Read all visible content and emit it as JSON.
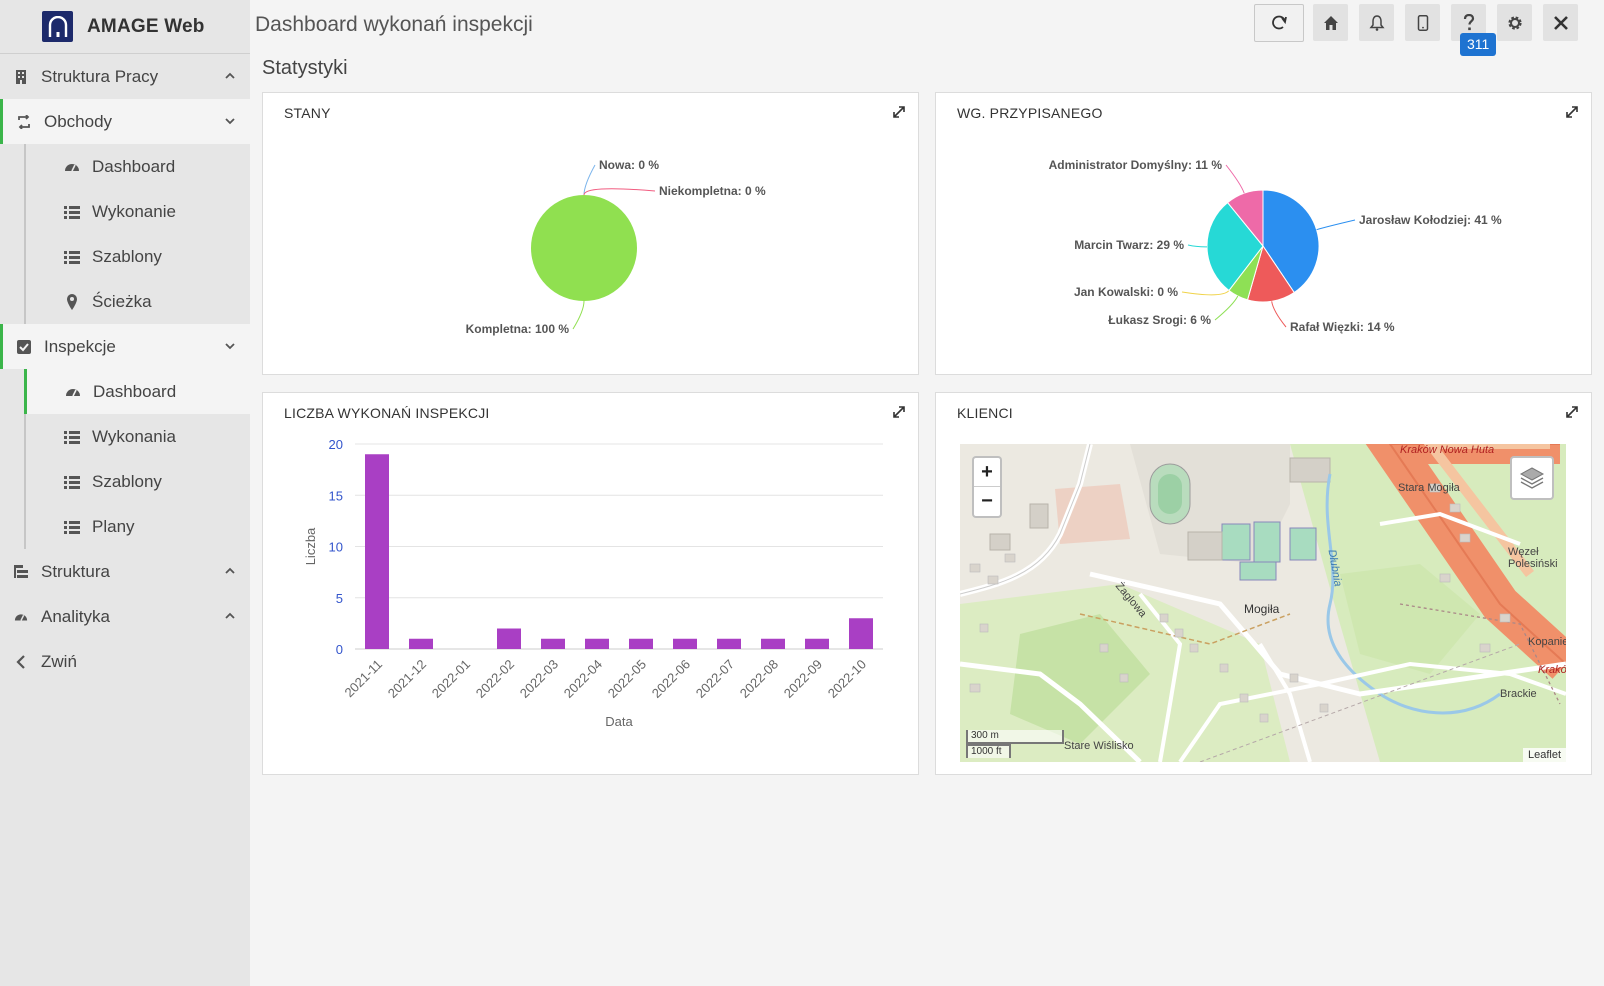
{
  "app": {
    "name": "AMAGE Web"
  },
  "topbar": {
    "title": "Dashboard wykonań inspekcji",
    "help_badge": "311"
  },
  "sidebar": {
    "items": [
      {
        "label": "Struktura Pracy"
      },
      {
        "label": "Obchody"
      },
      {
        "label": "Dashboard"
      },
      {
        "label": "Wykonanie"
      },
      {
        "label": "Szablony"
      },
      {
        "label": "Ścieżka"
      },
      {
        "label": "Inspekcje"
      },
      {
        "label": "Dashboard"
      },
      {
        "label": "Wykonania"
      },
      {
        "label": "Szablony"
      },
      {
        "label": "Plany"
      },
      {
        "label": "Struktura"
      },
      {
        "label": "Analityka"
      },
      {
        "label": "Zwiń"
      }
    ]
  },
  "main": {
    "section_title": "Statystyki",
    "cards": {
      "stany": "STANY",
      "assigned": "WG. PRZYPISANEGO",
      "count": "LICZBA WYKONAŃ INSPEKCJI",
      "clients": "KLIENCI"
    }
  },
  "chart_data": [
    {
      "type": "pie",
      "title": "STANY",
      "slices": [
        {
          "label": "Nowa: 0 %",
          "value": 0,
          "color": "#7cb5ec"
        },
        {
          "label": "Niekompletna: 0 %",
          "value": 0,
          "color": "#f15c80"
        },
        {
          "label": "Kompletna: 100 %",
          "value": 100,
          "color": "#90e050"
        }
      ]
    },
    {
      "type": "pie",
      "title": "WG. PRZYPISANEGO",
      "slices": [
        {
          "label": "Jarosław Kołodziej: 41 %",
          "value": 41,
          "color": "#2b8ff0"
        },
        {
          "label": "Rafał Więzki: 14 %",
          "value": 14,
          "color": "#ee5a5a"
        },
        {
          "label": "Łukasz Srogi: 6 %",
          "value": 6,
          "color": "#8ee055"
        },
        {
          "label": "Jan Kowalski: 0 %",
          "value": 0,
          "color": "#f0d34a"
        },
        {
          "label": "Marcin Twarz: 29 %",
          "value": 29,
          "color": "#26d9d6"
        },
        {
          "label": "Administrator Domyślny: 11 %",
          "value": 11,
          "color": "#ee6aa8"
        }
      ]
    },
    {
      "type": "bar",
      "title": "LICZBA WYKONAŃ INSPEKCJI",
      "xlabel": "Data",
      "ylabel": "Liczba",
      "ylim": [
        0,
        20
      ],
      "yticks": [
        "0",
        "5",
        "10",
        "15",
        "20"
      ],
      "categories": [
        "2021-11",
        "2021-12",
        "2022-01",
        "2022-02",
        "2022-03",
        "2022-04",
        "2022-05",
        "2022-06",
        "2022-07",
        "2022-08",
        "2022-09",
        "2022-10"
      ],
      "values": [
        19,
        1,
        0,
        2,
        1,
        1,
        1,
        1,
        1,
        1,
        1,
        3
      ],
      "color": "#a93fc4",
      "grid": true
    }
  ],
  "map": {
    "zoom_in": "+",
    "zoom_out": "−",
    "scale_m": "300 m",
    "scale_ft": "1000 ft",
    "attribution": "Leaflet",
    "labels": {
      "mogila": "Mogiła",
      "stara_mogila": "Stara Mogiła",
      "wezel": "Węzeł Polesiński",
      "nowa_huta": "Kraków Nowa Huta",
      "stare_wislisko": "Stare Wiślisko",
      "brackie": "Brackie",
      "kopaniec": "Kopaniec",
      "krakow": "Krakó",
      "zaglowa": "Żaglowa",
      "dluga": "Dłubnia"
    }
  }
}
